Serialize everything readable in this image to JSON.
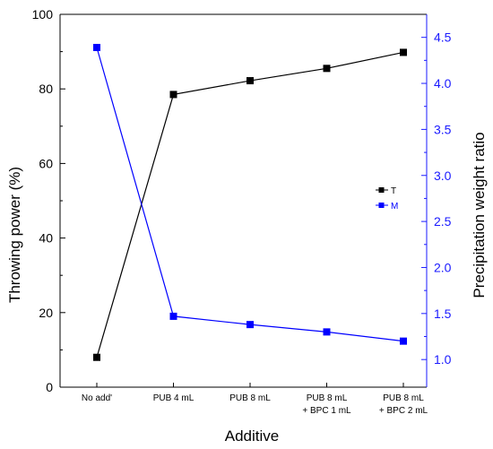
{
  "chart_data": {
    "type": "line",
    "xlabel": "Additive",
    "ylabel_left": "Throwing power (%)",
    "ylabel_right": "Precipitation weight ratio",
    "categories": [
      [
        "No add'"
      ],
      [
        "PUB 4 mL"
      ],
      [
        "PUB 8 mL"
      ],
      [
        "PUB 8 mL",
        "+ BPC 1 mL"
      ],
      [
        "PUB 8 mL",
        "+ BPC 2 mL"
      ]
    ],
    "ylim_left": [
      0,
      100
    ],
    "ylim_right": [
      0.7,
      4.75
    ],
    "yticks_left": [
      "0",
      "20",
      "40",
      "60",
      "80",
      "100"
    ],
    "yticks_right": [
      "1.0",
      "1.5",
      "2.0",
      "2.5",
      "3.0",
      "3.5",
      "4.0",
      "4.5"
    ],
    "series": [
      {
        "name": "T",
        "axis": "left",
        "color": "#000000",
        "values": [
          8,
          78.5,
          82.2,
          85.5,
          89.8
        ]
      },
      {
        "name": "M",
        "axis": "right",
        "color": "#0000ff",
        "values": [
          4.39,
          1.47,
          1.38,
          1.3,
          1.2
        ]
      }
    ],
    "legend_position": "center-right",
    "grid": false
  }
}
